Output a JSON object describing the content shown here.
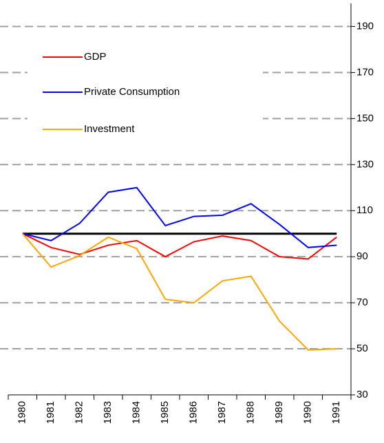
{
  "chart_data": {
    "type": "line",
    "categories": [
      "1980",
      "1981",
      "1982",
      "1983",
      "1984",
      "1985",
      "1986",
      "1987",
      "1988",
      "1989",
      "1990",
      "1991"
    ],
    "series": [
      {
        "name": "GDP",
        "color": "#ff0000",
        "values": [
          100,
          94,
          91,
          95,
          97,
          90,
          96.5,
          99,
          97,
          90,
          89,
          98.5
        ]
      },
      {
        "name": "Private Consumption",
        "color": "#0000ff",
        "values": [
          100,
          97,
          104.5,
          118,
          120,
          103.5,
          107.5,
          108,
          113,
          104,
          94,
          95
        ]
      },
      {
        "name": "Investment",
        "color": "#ffa500",
        "values": [
          100,
          85.5,
          90.5,
          98.5,
          93.5,
          71.5,
          70,
          79.5,
          81.5,
          62,
          49.5,
          50
        ]
      }
    ],
    "reference_line": 100,
    "ylim": [
      30,
      200
    ],
    "yticks": [
      30,
      50,
      70,
      90,
      110,
      130,
      150,
      170,
      190
    ],
    "grid": true,
    "legend": "upper left"
  }
}
